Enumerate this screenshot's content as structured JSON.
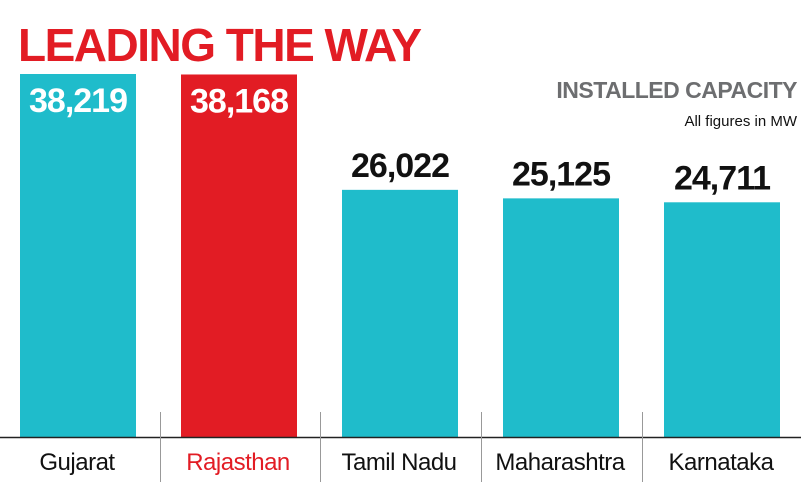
{
  "chart_data": {
    "type": "bar",
    "title": "LEADING THE WAY",
    "subtitle": "INSTALLED CAPACITY",
    "note": "All figures in MW",
    "categories": [
      "Gujarat",
      "Rajasthan",
      "Tamil Nadu",
      "Maharashtra",
      "Karnataka"
    ],
    "values": [
      38219,
      38168,
      26022,
      25125,
      24711
    ],
    "value_labels": [
      "38,219",
      "38,168",
      "26,022",
      "25,125",
      "24,711"
    ],
    "highlight_index": 1,
    "xlabel": "",
    "ylabel": "",
    "ylim": [
      0,
      38219
    ],
    "grid": false,
    "colors": {
      "bar": "#1fbccb",
      "highlight": "#e21c24",
      "title": "#e21c24",
      "subtitle": "#6d6e70",
      "text": "#111111",
      "value_on_bar": "#ffffff",
      "axis": "#222222",
      "divider": "#999999"
    }
  }
}
